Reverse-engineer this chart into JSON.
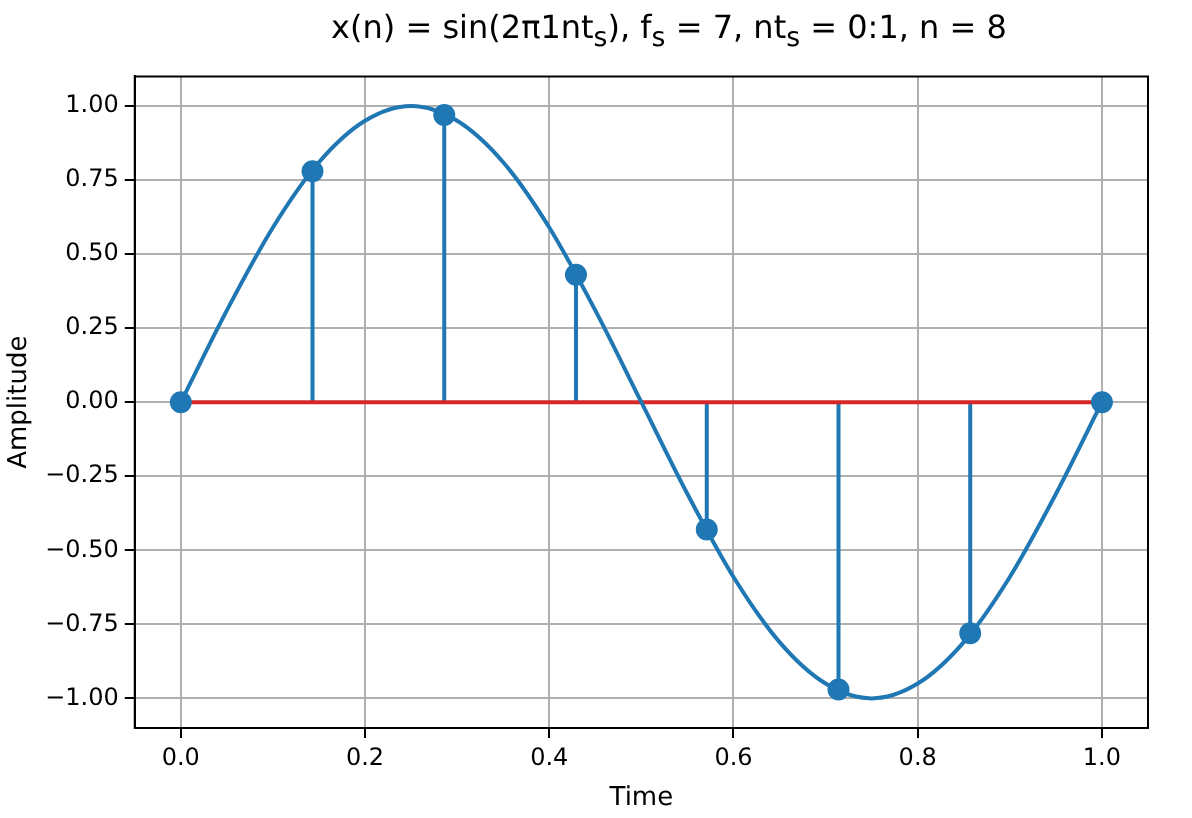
{
  "chart_data": {
    "type": "lollipop",
    "title": "x(n) = sin(2π1nt$_{s}$), f$_{s}$ = 7, nt$_{s}$ = 0:1, n = 8",
    "xlabel": "Time",
    "ylabel": "Amplitude",
    "series": [
      {
        "type": "line",
        "color": "#1f77b4",
        "marker": "none",
        "x": [
          0,
          0.05,
          0.1,
          0.15,
          0.2,
          0.25,
          0.3,
          0.35,
          0.4,
          0.45,
          0.5,
          0.55,
          0.6,
          0.65,
          0.7,
          0.75,
          0.8,
          0.85,
          0.9,
          0.95,
          1
        ],
        "values": [
          0,
          0.31,
          0.59,
          0.81,
          0.95,
          1,
          0.95,
          0.81,
          0.59,
          0.31,
          0,
          -0.31,
          -0.59,
          -0.81,
          -0.95,
          -1,
          -0.95,
          -0.81,
          -0.59,
          -0.31,
          0
        ]
      },
      {
        "color": "#1f77b4",
        "marker": "circle",
        "x": [
          0,
          0.143,
          0.286,
          0.429,
          0.571,
          0.714,
          0.857,
          1
        ],
        "values": [
          0,
          0.78,
          0.97,
          0.43,
          -0.43,
          -0.97,
          -0.78,
          0
        ]
      }
    ],
    "ref_lines": [
      {
        "axis": "y",
        "value": 0,
        "color": "#d62728"
      }
    ],
    "xlim": [
      -0.05,
      1.05
    ],
    "xticks": [
      {
        "value": 0,
        "label": "0.0"
      },
      {
        "value": 0.2,
        "label": "0.2"
      },
      {
        "value": 0.4,
        "label": "0.4"
      },
      {
        "value": 0.6,
        "label": "0.6"
      },
      {
        "value": 0.8,
        "label": "0.8"
      },
      {
        "value": 1,
        "label": "1.0"
      }
    ],
    "ylim": [
      -1.1,
      1.1
    ],
    "yticks": [
      {
        "value": -1,
        "label": "−1.00"
      },
      {
        "value": -0.75,
        "label": "−0.75"
      },
      {
        "value": -0.5,
        "label": "−0.50"
      },
      {
        "value": -0.25,
        "label": "−0.25"
      },
      {
        "value": 0,
        "label": "0.00"
      },
      {
        "value": 0.25,
        "label": "0.25"
      },
      {
        "value": 0.5,
        "label": "0.50"
      },
      {
        "value": 0.75,
        "label": "0.75"
      },
      {
        "value": 1,
        "label": "1.00"
      }
    ],
    "grid": true,
    "legend": false
  }
}
